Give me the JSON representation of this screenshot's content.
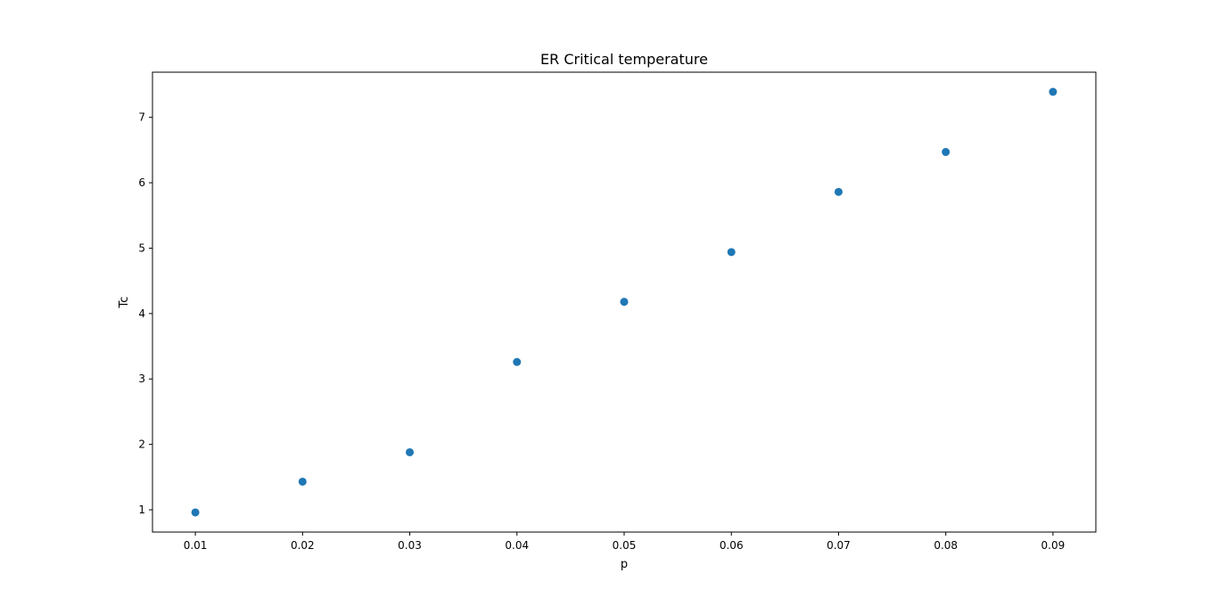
{
  "chart_data": {
    "type": "scatter",
    "title": "ER Critical temperature",
    "xlabel": "p",
    "ylabel": "Tc",
    "x": [
      0.01,
      0.02,
      0.03,
      0.04,
      0.05,
      0.06,
      0.07,
      0.08,
      0.09
    ],
    "y": [
      0.96,
      1.43,
      1.88,
      3.26,
      4.18,
      4.94,
      5.86,
      6.47,
      7.39
    ],
    "xlim": [
      0.006,
      0.094
    ],
    "ylim": [
      0.66,
      7.69
    ],
    "xticks": [
      0.01,
      0.02,
      0.03,
      0.04,
      0.05,
      0.06,
      0.07,
      0.08,
      0.09
    ],
    "xtick_labels": [
      "0.01",
      "0.02",
      "0.03",
      "0.04",
      "0.05",
      "0.06",
      "0.07",
      "0.08",
      "0.09"
    ],
    "yticks": [
      1,
      2,
      3,
      4,
      5,
      6,
      7
    ],
    "ytick_labels": [
      "1",
      "2",
      "3",
      "4",
      "5",
      "6",
      "7"
    ],
    "grid": false,
    "marker_color": "#1f77b4"
  }
}
